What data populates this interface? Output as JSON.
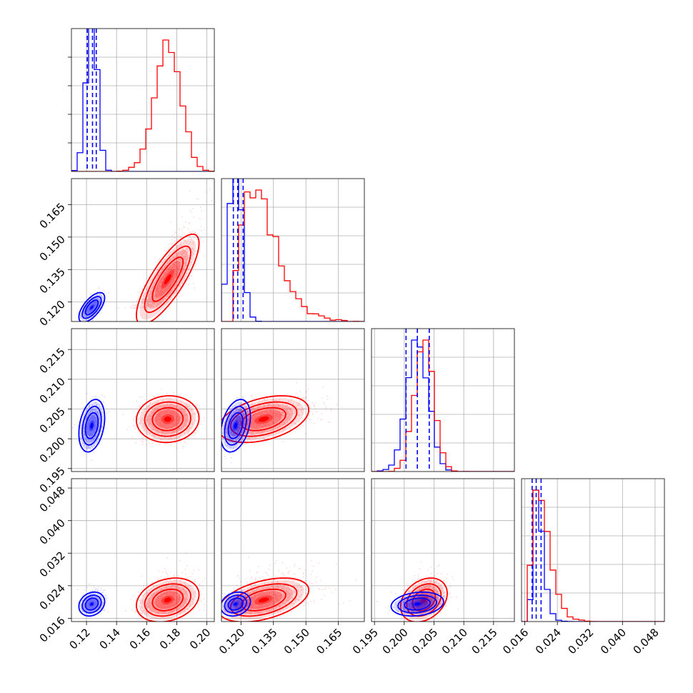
{
  "colors": {
    "blue": "#0000ff",
    "red": "#ff0000",
    "grid": "#b0b0b0"
  },
  "chart_data": {
    "type": "corner",
    "grid": true,
    "parameters": [
      {
        "range": [
          0.11,
          0.205
        ],
        "ticks": [
          0.12,
          0.14,
          0.16,
          0.18,
          0.2
        ],
        "tick_labels": [
          "0.12",
          "0.14",
          "0.16",
          "0.18",
          "0.20"
        ]
      },
      {
        "range": [
          0.111,
          0.177
        ],
        "ticks": [
          0.12,
          0.135,
          0.15,
          0.165
        ],
        "tick_labels": [
          "0.120",
          "0.135",
          "0.150",
          "0.165"
        ]
      },
      {
        "range": [
          0.1945,
          0.2185
        ],
        "ticks": [
          0.195,
          0.2,
          0.205,
          0.21,
          0.215
        ],
        "tick_labels": [
          "0.195",
          "0.200",
          "0.205",
          "0.210",
          "0.215"
        ]
      },
      {
        "range": [
          0.0152,
          0.0503
        ],
        "ticks": [
          0.016,
          0.024,
          0.032,
          0.04,
          0.048
        ],
        "tick_labels": [
          "0.016",
          "0.024",
          "0.032",
          "0.040",
          "0.048"
        ]
      }
    ],
    "series": [
      {
        "color": "blue",
        "means": [
          0.1235,
          0.1175,
          0.2022,
          0.0195
        ],
        "sds": [
          0.0035,
          0.0028,
          0.0018,
          0.0012
        ],
        "cov_offdiag": {
          "0-1": 0.65,
          "0-2": 0.3,
          "1-2": 0.35,
          "0-3": 0.2,
          "1-3": 0.2,
          "2-3": 0.2
        },
        "quantiles_16_50_84": [
          [
            0.1205,
            0.124,
            0.1265
          ],
          [
            0.1165,
            0.1185,
            0.121
          ],
          [
            0.2003,
            0.2022,
            0.2042
          ],
          [
            0.0178,
            0.0188,
            0.02
          ]
        ]
      },
      {
        "color": "red",
        "means": [
          0.174,
          0.1305,
          0.2033,
          0.0205
        ],
        "sds": [
          0.0085,
          0.0085,
          0.0016,
          0.0022
        ],
        "cov_offdiag": {
          "0-1": 0.8,
          "0-2": 0.05,
          "1-2": 0.4,
          "0-3": 0.25,
          "1-3": 0.45,
          "2-3": 0.3
        }
      }
    ]
  }
}
